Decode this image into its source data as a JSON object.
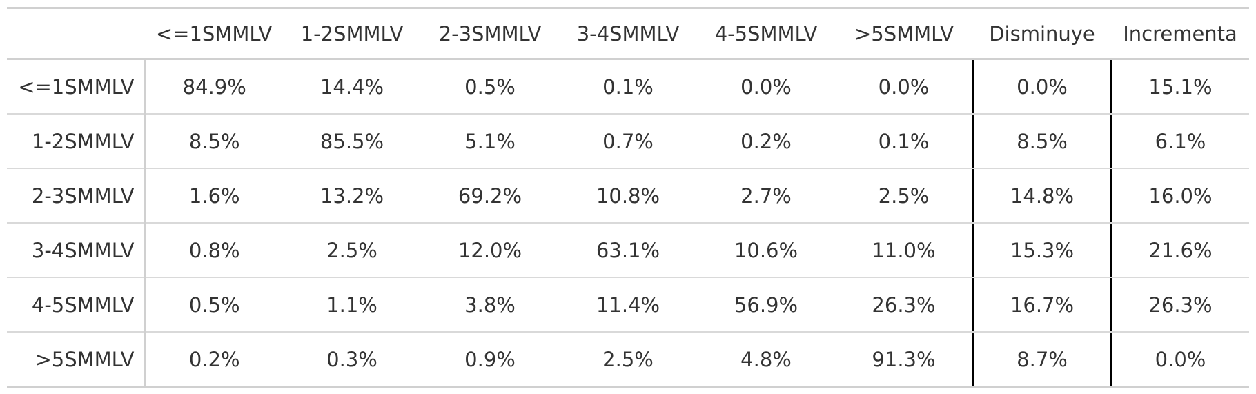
{
  "table": {
    "columns": [
      "<=1SMMLV",
      "1-2SMMLV",
      "2-3SMMLV",
      "3-4SMMLV",
      "4-5SMMLV",
      ">5SMMLV",
      "Disminuye",
      "Incrementa"
    ],
    "rows": [
      {
        "label": "<=1SMMLV",
        "values": [
          "84.9%",
          "14.4%",
          "0.5%",
          "0.1%",
          "0.0%",
          "0.0%",
          "0.0%",
          "15.1%"
        ]
      },
      {
        "label": "1-2SMMLV",
        "values": [
          "8.5%",
          "85.5%",
          "5.1%",
          "0.7%",
          "0.2%",
          "0.1%",
          "8.5%",
          "6.1%"
        ]
      },
      {
        "label": "2-3SMMLV",
        "values": [
          "1.6%",
          "13.2%",
          "69.2%",
          "10.8%",
          "2.7%",
          "2.5%",
          "14.8%",
          "16.0%"
        ]
      },
      {
        "label": "3-4SMMLV",
        "values": [
          "0.8%",
          "2.5%",
          "12.0%",
          "63.1%",
          "10.6%",
          "11.0%",
          "15.3%",
          "21.6%"
        ]
      },
      {
        "label": "4-5SMMLV",
        "values": [
          "0.5%",
          "1.1%",
          "3.8%",
          "11.4%",
          "56.9%",
          "26.3%",
          "16.7%",
          "26.3%"
        ]
      },
      {
        "label": ">5SMMLV",
        "values": [
          "0.2%",
          "0.3%",
          "0.9%",
          "2.5%",
          "4.8%",
          "91.3%",
          "8.7%",
          "0.0%"
        ]
      }
    ]
  }
}
